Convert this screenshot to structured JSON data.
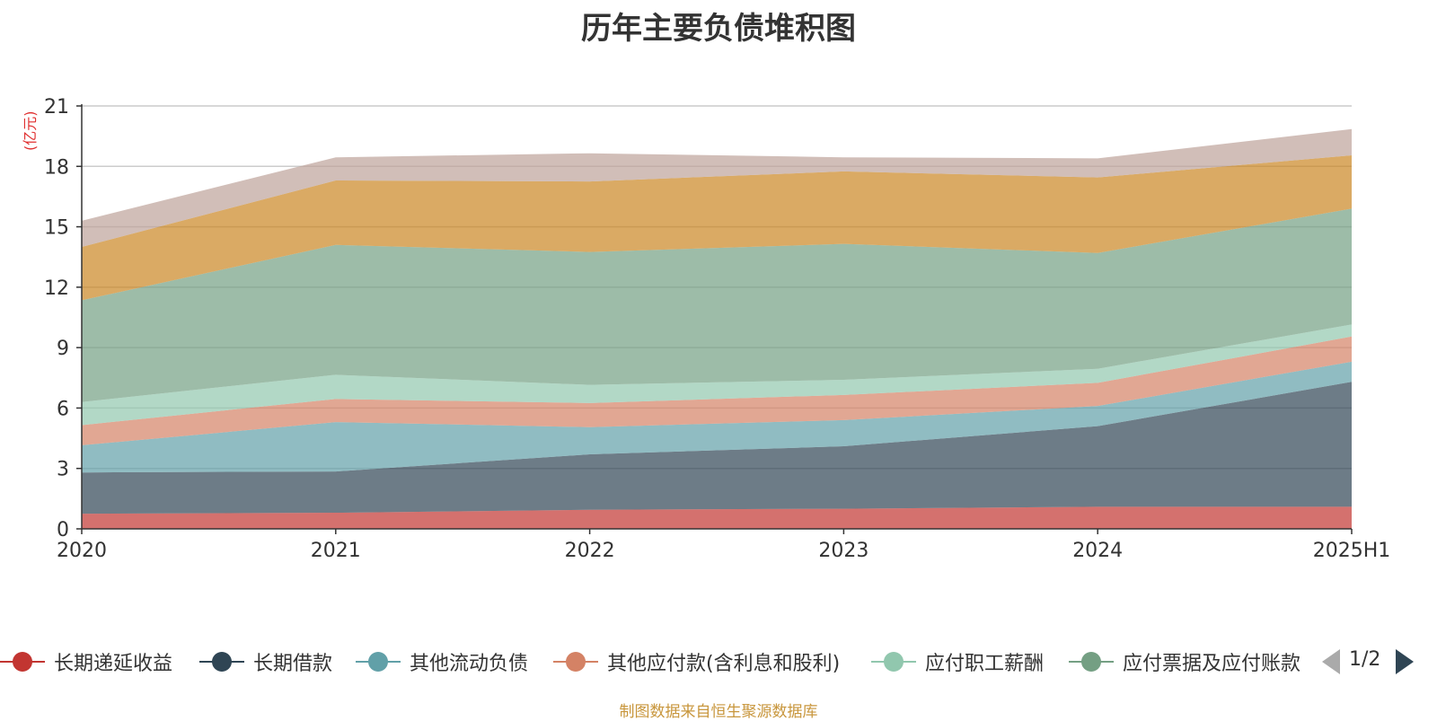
{
  "title": "历年主要负债堆积图",
  "unit": "(亿元)",
  "source_note": "制图数据来自恒生聚源数据库",
  "legend_page": "1/2",
  "legend_items": [
    "长期递延收益",
    "长期借款",
    "其他流动负债",
    "其他应付款(含利息和股利)",
    "应付职工薪酬",
    "应付票据及应付账款"
  ],
  "chart_data": {
    "type": "area",
    "stacked": true,
    "categories": [
      "2020",
      "2021",
      "2022",
      "2023",
      "2024",
      "2025H1"
    ],
    "y_ticks": [
      "0",
      "3",
      "6",
      "9",
      "12",
      "15",
      "18",
      "21"
    ],
    "ylim": [
      0,
      21
    ],
    "grid": true,
    "legend_position": "bottom",
    "series": [
      {
        "name": "长期递延收益",
        "color": "#c23531",
        "values": [
          0.75,
          0.8,
          0.95,
          1.0,
          1.1,
          1.1
        ]
      },
      {
        "name": "长期借款",
        "color": "#2f4554",
        "values": [
          2.05,
          2.05,
          2.75,
          3.1,
          4.0,
          6.2
        ]
      },
      {
        "name": "其他流动负债",
        "color": "#61a0a8",
        "values": [
          1.35,
          2.45,
          1.35,
          1.3,
          1.0,
          1.0
        ]
      },
      {
        "name": "其他应付款(含利息和股利)",
        "color": "#d48265",
        "values": [
          1.0,
          1.15,
          1.2,
          1.25,
          1.15,
          1.25
        ]
      },
      {
        "name": "应付职工薪酬",
        "color": "#91c7ae",
        "values": [
          1.15,
          1.2,
          0.9,
          0.75,
          0.7,
          0.6
        ]
      },
      {
        "name": "应付票据及应付账款",
        "color": "#749f83",
        "values": [
          5.05,
          6.45,
          6.6,
          6.75,
          5.75,
          5.75
        ]
      },
      {
        "color": "#ca8622",
        "values": [
          2.65,
          3.2,
          3.5,
          3.6,
          3.75,
          2.65
        ]
      },
      {
        "color": "#bda29a",
        "values": [
          1.3,
          1.15,
          1.4,
          0.7,
          0.95,
          1.3
        ]
      }
    ]
  }
}
